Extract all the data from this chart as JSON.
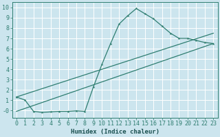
{
  "xlabel": "Humidex (Indice chaleur)",
  "xlim": [
    -0.5,
    23.5
  ],
  "ylim": [
    -0.7,
    10.5
  ],
  "xticks": [
    0,
    1,
    2,
    3,
    4,
    5,
    6,
    7,
    8,
    9,
    10,
    11,
    12,
    13,
    14,
    15,
    16,
    17,
    18,
    19,
    20,
    21,
    22,
    23
  ],
  "yticks": [
    0,
    1,
    2,
    3,
    4,
    5,
    6,
    7,
    8,
    9,
    10
  ],
  "ytick_labels": [
    "-0",
    "1",
    "2",
    "3",
    "4",
    "5",
    "6",
    "7",
    "8",
    "9",
    "10"
  ],
  "line_color": "#2e7d70",
  "bg_color": "#cce5ee",
  "grid_color": "#ffffff",
  "line1_x": [
    0,
    1,
    2,
    3,
    4,
    5,
    6,
    7,
    8,
    9,
    10,
    11,
    12,
    13,
    14,
    15,
    16,
    17,
    18,
    19,
    20,
    21,
    22,
    23
  ],
  "line1_y": [
    1.3,
    1.0,
    -0.1,
    -0.2,
    -0.15,
    -0.1,
    -0.1,
    -0.05,
    -0.1,
    2.3,
    4.5,
    6.5,
    8.4,
    9.2,
    9.9,
    9.4,
    8.9,
    8.2,
    7.5,
    7.0,
    7.0,
    6.8,
    6.6,
    6.5
  ],
  "line2_x": [
    0,
    23
  ],
  "line2_y": [
    1.3,
    7.5
  ],
  "line3_x": [
    0,
    23
  ],
  "line3_y": [
    -0.1,
    6.5
  ],
  "xlabel_fontsize": 6.5,
  "tick_fontsize": 6,
  "xlabel_color": "#1a5050",
  "tick_color": "#2e7d70"
}
